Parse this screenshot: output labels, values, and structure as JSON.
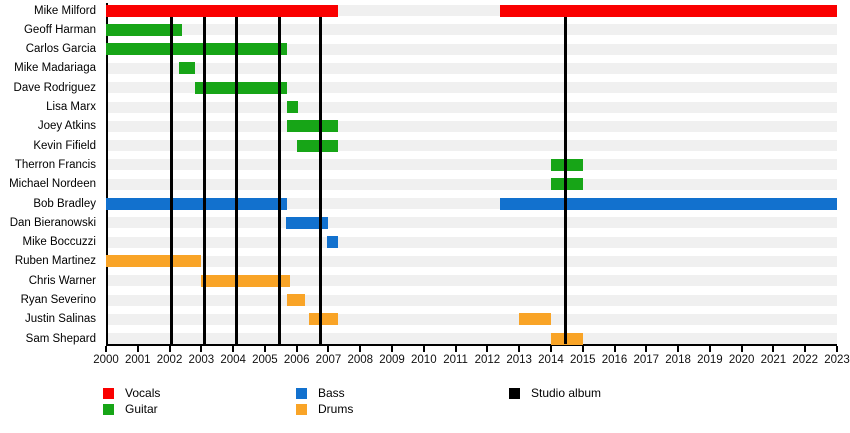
{
  "chart_data": {
    "type": "gantt",
    "title": "",
    "x_range": [
      2000,
      2023
    ],
    "x_ticks": [
      2000,
      2001,
      2002,
      2003,
      2004,
      2005,
      2006,
      2007,
      2008,
      2009,
      2010,
      2011,
      2012,
      2013,
      2014,
      2015,
      2016,
      2017,
      2018,
      2019,
      2020,
      2021,
      2022,
      2023
    ],
    "rows": [
      {
        "name": "Mike Milford",
        "role": "Vocals",
        "segments": [
          [
            2000,
            2007.3
          ],
          [
            2012.4,
            2023
          ]
        ]
      },
      {
        "name": "Geoff Harman",
        "role": "Guitar",
        "segments": [
          [
            2000,
            2002.4
          ]
        ]
      },
      {
        "name": "Carlos Garcia",
        "role": "Guitar",
        "segments": [
          [
            2000,
            2005.7
          ]
        ]
      },
      {
        "name": "Mike Madariaga",
        "role": "Guitar",
        "segments": [
          [
            2002.3,
            2002.8
          ]
        ]
      },
      {
        "name": "Dave Rodriguez",
        "role": "Guitar",
        "segments": [
          [
            2002.8,
            2005.7
          ]
        ]
      },
      {
        "name": "Lisa Marx",
        "role": "Guitar",
        "segments": [
          [
            2005.7,
            2006.05
          ]
        ]
      },
      {
        "name": "Joey Atkins",
        "role": "Guitar",
        "segments": [
          [
            2005.7,
            2007.3
          ]
        ]
      },
      {
        "name": "Kevin Fifield",
        "role": "Guitar",
        "segments": [
          [
            2006.0,
            2007.3
          ]
        ]
      },
      {
        "name": "Therron Francis",
        "role": "Guitar",
        "segments": [
          [
            2014.0,
            2015.0
          ]
        ]
      },
      {
        "name": "Michael Nordeen",
        "role": "Guitar",
        "segments": [
          [
            2014.0,
            2015.0
          ]
        ]
      },
      {
        "name": "Bob Bradley",
        "role": "Bass",
        "segments": [
          [
            2000,
            2005.7
          ],
          [
            2012.4,
            2023
          ]
        ]
      },
      {
        "name": "Dan Bieranowski",
        "role": "Bass",
        "segments": [
          [
            2005.65,
            2007.0
          ]
        ]
      },
      {
        "name": "Mike Boccuzzi",
        "role": "Bass",
        "segments": [
          [
            2006.95,
            2007.3
          ]
        ]
      },
      {
        "name": "Ruben Martinez",
        "role": "Drums",
        "segments": [
          [
            2000,
            2003.0
          ]
        ]
      },
      {
        "name": "Chris Warner",
        "role": "Drums",
        "segments": [
          [
            2003.0,
            2005.8
          ]
        ]
      },
      {
        "name": "Ryan Severino",
        "role": "Drums",
        "segments": [
          [
            2005.7,
            2006.25
          ]
        ]
      },
      {
        "name": "Justin Salinas",
        "role": "Drums",
        "segments": [
          [
            2006.4,
            2007.3
          ],
          [
            2013.0,
            2014.0
          ]
        ]
      },
      {
        "name": "Sam Shepard",
        "role": "Drums",
        "segments": [
          [
            2014.0,
            2015.0
          ]
        ]
      }
    ],
    "album_lines": [
      2002.05,
      2003.1,
      2004.1,
      2005.45,
      2006.75,
      2014.45
    ],
    "roles": {
      "Vocals": "#fa0000",
      "Guitar": "#17a517",
      "Bass": "#1271ce",
      "Drums": "#f9a427"
    },
    "legend": [
      {
        "label": "Vocals",
        "color": "#fa0000",
        "col": 0,
        "row": 0
      },
      {
        "label": "Guitar",
        "color": "#17a517",
        "col": 0,
        "row": 1
      },
      {
        "label": "Bass",
        "color": "#1271ce",
        "col": 1,
        "row": 0
      },
      {
        "label": "Drums",
        "color": "#f9a427",
        "col": 1,
        "row": 1
      },
      {
        "label": "Studio album",
        "color": "#000000",
        "col": 2,
        "row": 0
      }
    ],
    "styles": {
      "row_band": "#f0f0f0",
      "axis": "#000000",
      "album_line": "#000000",
      "background": "#ffffff"
    },
    "legend_position": "bottom",
    "grid": "horizontal-row-bands"
  }
}
